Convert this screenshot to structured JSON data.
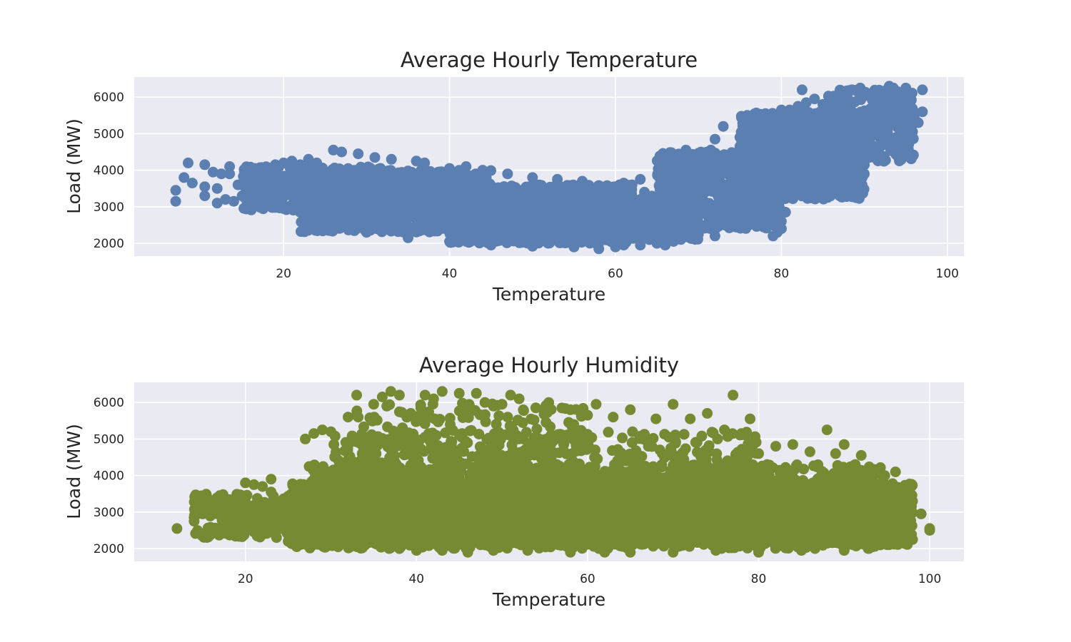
{
  "chart_data": [
    {
      "type": "scatter",
      "title": "Average Hourly Temperature",
      "xlabel": "Temperature",
      "ylabel": "Load (MW)",
      "xlim": [
        2,
        102
      ],
      "ylim": [
        1650,
        6550
      ],
      "xticks": [
        20,
        40,
        60,
        80,
        100
      ],
      "yticks": [
        2000,
        3000,
        4000,
        5000,
        6000
      ],
      "grid": true,
      "color": "#5b7fb0",
      "density_bands": [
        {
          "x": [
            15,
            33
          ],
          "y": [
            2900,
            4100
          ],
          "n": 350
        },
        {
          "x": [
            22,
            45
          ],
          "y": [
            2300,
            4000
          ],
          "n": 1100
        },
        {
          "x": [
            40,
            62
          ],
          "y": [
            2000,
            3600
          ],
          "n": 1200
        },
        {
          "x": [
            55,
            70
          ],
          "y": [
            2100,
            3300
          ],
          "n": 500
        },
        {
          "x": [
            65,
            80
          ],
          "y": [
            2400,
            4500
          ],
          "n": 700
        },
        {
          "x": [
            75,
            90
          ],
          "y": [
            3200,
            5600
          ],
          "n": 900
        },
        {
          "x": [
            85,
            96
          ],
          "y": [
            4200,
            6200
          ],
          "n": 350
        }
      ],
      "points": [
        [
          7,
          3150
        ],
        [
          7,
          3450
        ],
        [
          8,
          3800
        ],
        [
          8.5,
          4200
        ],
        [
          9,
          3650
        ],
        [
          10.5,
          4150
        ],
        [
          10.5,
          3550
        ],
        [
          10.5,
          3300
        ],
        [
          11.5,
          3950
        ],
        [
          12,
          3100
        ],
        [
          12,
          3500
        ],
        [
          12.5,
          3900
        ],
        [
          13,
          3200
        ],
        [
          13.5,
          4100
        ],
        [
          13.5,
          3900
        ],
        [
          14,
          3150
        ],
        [
          14.5,
          3600
        ],
        [
          15,
          3300
        ],
        [
          16,
          3800
        ],
        [
          16.5,
          4050
        ],
        [
          16.5,
          3100
        ],
        [
          17.5,
          3950
        ],
        [
          18,
          3600
        ],
        [
          19,
          4150
        ],
        [
          20,
          4200
        ],
        [
          20.5,
          3000
        ],
        [
          21,
          4250
        ],
        [
          22,
          4150
        ],
        [
          23,
          4300
        ],
        [
          24,
          4200
        ],
        [
          26,
          4550
        ],
        [
          27,
          4500
        ],
        [
          29,
          4450
        ],
        [
          31,
          4350
        ],
        [
          33,
          4300
        ],
        [
          36,
          4250
        ],
        [
          37,
          4200
        ],
        [
          40,
          4050
        ],
        [
          42,
          4100
        ],
        [
          44,
          4000
        ],
        [
          47,
          3900
        ],
        [
          50,
          3800
        ],
        [
          53,
          3750
        ],
        [
          56,
          3700
        ],
        [
          58,
          3500
        ],
        [
          60.5,
          3600
        ],
        [
          61,
          3650
        ],
        [
          62,
          3600
        ],
        [
          63,
          3750
        ],
        [
          63.5,
          3400
        ],
        [
          58,
          1850
        ],
        [
          60,
          1900
        ],
        [
          63,
          1950
        ],
        [
          65,
          2000
        ],
        [
          66,
          1950
        ],
        [
          67,
          3850
        ],
        [
          68,
          4350
        ],
        [
          68.5,
          4550
        ],
        [
          70,
          4250
        ],
        [
          70.5,
          4300
        ],
        [
          71,
          4150
        ],
        [
          71.5,
          4550
        ],
        [
          72,
          4850
        ],
        [
          73,
          5200
        ],
        [
          75,
          4650
        ],
        [
          76,
          5000
        ],
        [
          77,
          5050
        ],
        [
          78,
          5150
        ],
        [
          79,
          2200
        ],
        [
          79.5,
          2300
        ],
        [
          80,
          2400
        ],
        [
          80,
          2600
        ],
        [
          80.5,
          2850
        ],
        [
          80,
          5650
        ],
        [
          81,
          5650
        ],
        [
          82,
          5750
        ],
        [
          82.5,
          6200
        ],
        [
          83,
          5850
        ],
        [
          84,
          5950
        ],
        [
          85,
          5800
        ],
        [
          86,
          5900
        ],
        [
          87,
          6050
        ],
        [
          88,
          5900
        ],
        [
          88.5,
          6200
        ],
        [
          89.5,
          6250
        ],
        [
          90,
          6100
        ],
        [
          91,
          6000
        ],
        [
          92,
          5950
        ],
        [
          93,
          6300
        ],
        [
          93.5,
          6250
        ],
        [
          94,
          6150
        ],
        [
          94.5,
          5550
        ],
        [
          95,
          6250
        ],
        [
          95.5,
          5850
        ],
        [
          96,
          5450
        ],
        [
          96.5,
          5300
        ],
        [
          97,
          5600
        ],
        [
          97,
          6200
        ],
        [
          94,
          4700
        ],
        [
          95,
          5050
        ],
        [
          92,
          4750
        ],
        [
          91,
          4500
        ],
        [
          89,
          4000
        ],
        [
          90,
          4150
        ],
        [
          88,
          4250
        ],
        [
          86,
          3900
        ],
        [
          84,
          3700
        ],
        [
          82,
          3400
        ],
        [
          81,
          3250
        ],
        [
          78,
          3100
        ],
        [
          76,
          2700
        ],
        [
          74,
          2450
        ],
        [
          72,
          2200
        ],
        [
          70,
          2250
        ],
        [
          69,
          2150
        ],
        [
          67,
          2050
        ],
        [
          61,
          1950
        ],
        [
          55,
          1900
        ],
        [
          50,
          1920
        ],
        [
          45,
          1950
        ],
        [
          40,
          2050
        ],
        [
          35,
          2150
        ],
        [
          30,
          2300
        ],
        [
          26,
          2550
        ],
        [
          24,
          2650
        ],
        [
          22,
          2850
        ],
        [
          20,
          2950
        ]
      ]
    },
    {
      "type": "scatter",
      "title": "Average Hourly Humidity",
      "xlabel": "Temperature",
      "ylabel": "Load (MW)",
      "xlim": [
        7,
        104
      ],
      "ylim": [
        1650,
        6550
      ],
      "xticks": [
        20,
        40,
        60,
        80,
        100
      ],
      "yticks": [
        2000,
        3000,
        4000,
        5000,
        6000
      ],
      "grid": true,
      "color": "#758a32",
      "density_bands": [
        {
          "x": [
            14,
            26
          ],
          "y": [
            2300,
            3500
          ],
          "n": 200
        },
        {
          "x": [
            25,
            98
          ],
          "y": [
            2100,
            3800
          ],
          "n": 3500
        },
        {
          "x": [
            27,
            95
          ],
          "y": [
            2000,
            4300
          ],
          "n": 2000
        },
        {
          "x": [
            30,
            80
          ],
          "y": [
            2100,
            5200
          ],
          "n": 900
        },
        {
          "x": [
            33,
            60
          ],
          "y": [
            3500,
            6000
          ],
          "n": 250
        }
      ],
      "points": [
        [
          12,
          2550
        ],
        [
          14,
          2750
        ],
        [
          14,
          2850
        ],
        [
          15,
          2950
        ],
        [
          15,
          3050
        ],
        [
          16,
          3100
        ],
        [
          16,
          3250
        ],
        [
          17,
          2450
        ],
        [
          17,
          3450
        ],
        [
          18,
          2800
        ],
        [
          19,
          3400
        ],
        [
          20,
          3800
        ],
        [
          21,
          3750
        ],
        [
          22,
          3700
        ],
        [
          23,
          3550
        ],
        [
          23,
          3900
        ],
        [
          25,
          2200
        ],
        [
          26,
          2050
        ],
        [
          27,
          5000
        ],
        [
          28,
          5150
        ],
        [
          29,
          5250
        ],
        [
          30,
          5200
        ],
        [
          32,
          5600
        ],
        [
          33,
          6200
        ],
        [
          33,
          5650
        ],
        [
          35,
          5950
        ],
        [
          36,
          6150
        ],
        [
          37,
          6300
        ],
        [
          38,
          6200
        ],
        [
          41,
          6200
        ],
        [
          42,
          6100
        ],
        [
          43,
          6300
        ],
        [
          45,
          6250
        ],
        [
          47,
          6250
        ],
        [
          48,
          6000
        ],
        [
          49,
          5900
        ],
        [
          50,
          5950
        ],
        [
          51,
          6200
        ],
        [
          52,
          6100
        ],
        [
          55,
          5750
        ],
        [
          57,
          5850
        ],
        [
          58,
          5800
        ],
        [
          60,
          5650
        ],
        [
          61,
          5950
        ],
        [
          63,
          5600
        ],
        [
          65,
          5800
        ],
        [
          68,
          5550
        ],
        [
          70,
          5950
        ],
        [
          72,
          5550
        ],
        [
          74,
          5700
        ],
        [
          76,
          5250
        ],
        [
          77,
          6200
        ],
        [
          78,
          5150
        ],
        [
          79,
          5550
        ],
        [
          80,
          4600
        ],
        [
          82,
          4800
        ],
        [
          84,
          4850
        ],
        [
          86,
          4650
        ],
        [
          88,
          5250
        ],
        [
          89,
          4600
        ],
        [
          90,
          4850
        ],
        [
          92,
          4550
        ],
        [
          94,
          4150
        ],
        [
          96,
          4100
        ],
        [
          97,
          3600
        ],
        [
          98,
          3300
        ],
        [
          98,
          2250
        ],
        [
          99,
          2950
        ],
        [
          100,
          2500
        ],
        [
          100,
          2550
        ],
        [
          95,
          2300
        ],
        [
          93,
          2050
        ],
        [
          90,
          1950
        ],
        [
          85,
          1950
        ],
        [
          80,
          1900
        ],
        [
          75,
          1950
        ],
        [
          70,
          1900
        ],
        [
          65,
          1900
        ],
        [
          62,
          1900
        ],
        [
          58,
          1900
        ],
        [
          53,
          1950
        ],
        [
          49,
          1950
        ],
        [
          46,
          1900
        ],
        [
          43,
          1950
        ],
        [
          40,
          1950
        ],
        [
          38,
          2000
        ],
        [
          36,
          2050
        ],
        [
          34,
          2100
        ],
        [
          31,
          2150
        ],
        [
          29,
          2150
        ],
        [
          27,
          2200
        ]
      ]
    }
  ]
}
